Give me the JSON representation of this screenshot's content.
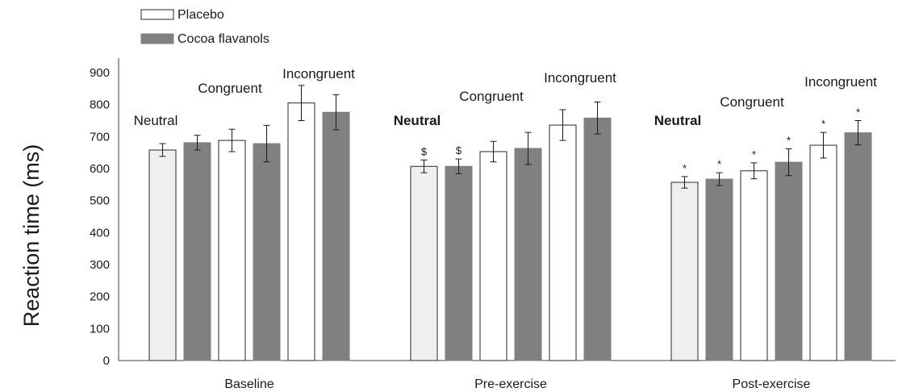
{
  "chart_data": {
    "type": "bar",
    "title": "",
    "ylabel": "Reaction  time (ms)",
    "xlabel": "",
    "ylim": [
      0,
      900
    ],
    "yticks": [
      0,
      100,
      200,
      300,
      400,
      500,
      600,
      700,
      800,
      900
    ],
    "grid": false,
    "legend": [
      {
        "name": "Placebo",
        "color": "#ffffff"
      },
      {
        "name": "Cocoa flavanols",
        "color": "#808080"
      }
    ],
    "groups": [
      {
        "label": "Baseline",
        "condition_labels_bold": false,
        "conditions": [
          {
            "label": "Neutral",
            "bars": [
              {
                "value": 658,
                "err": 20,
                "sig": ""
              },
              {
                "value": 681,
                "err": 23,
                "sig": ""
              }
            ]
          },
          {
            "label": "Congruent",
            "bars": [
              {
                "value": 688,
                "err": 35,
                "sig": ""
              },
              {
                "value": 678,
                "err": 57,
                "sig": ""
              }
            ]
          },
          {
            "label": "Incongruent",
            "bars": [
              {
                "value": 805,
                "err": 55,
                "sig": ""
              },
              {
                "value": 776,
                "err": 55,
                "sig": ""
              }
            ]
          }
        ]
      },
      {
        "label": "Pre-exercise",
        "condition_labels_bold": true,
        "conditions": [
          {
            "label": "Neutral",
            "bars": [
              {
                "value": 607,
                "err": 20,
                "sig": "$"
              },
              {
                "value": 607,
                "err": 23,
                "sig": "$"
              }
            ]
          },
          {
            "label": "Congruent",
            "bars": [
              {
                "value": 653,
                "err": 32,
                "sig": ""
              },
              {
                "value": 663,
                "err": 50,
                "sig": ""
              }
            ]
          },
          {
            "label": "Incongruent",
            "bars": [
              {
                "value": 736,
                "err": 48,
                "sig": ""
              },
              {
                "value": 758,
                "err": 50,
                "sig": ""
              }
            ]
          }
        ]
      },
      {
        "label": "Post-exercise",
        "condition_labels_bold": true,
        "conditions": [
          {
            "label": "Neutral",
            "bars": [
              {
                "value": 557,
                "err": 18,
                "sig": "*"
              },
              {
                "value": 567,
                "err": 20,
                "sig": "*"
              }
            ]
          },
          {
            "label": "Congruent",
            "bars": [
              {
                "value": 593,
                "err": 25,
                "sig": "*"
              },
              {
                "value": 620,
                "err": 42,
                "sig": "*"
              }
            ]
          },
          {
            "label": "Incongruent",
            "bars": [
              {
                "value": 673,
                "err": 40,
                "sig": "*"
              },
              {
                "value": 712,
                "err": 38,
                "sig": "*"
              }
            ]
          }
        ]
      }
    ],
    "colors": {
      "placebo_neutral": "#efefef",
      "placebo": "#ffffff",
      "cocoa": "#808080",
      "outline": "#2a2a2a"
    }
  }
}
